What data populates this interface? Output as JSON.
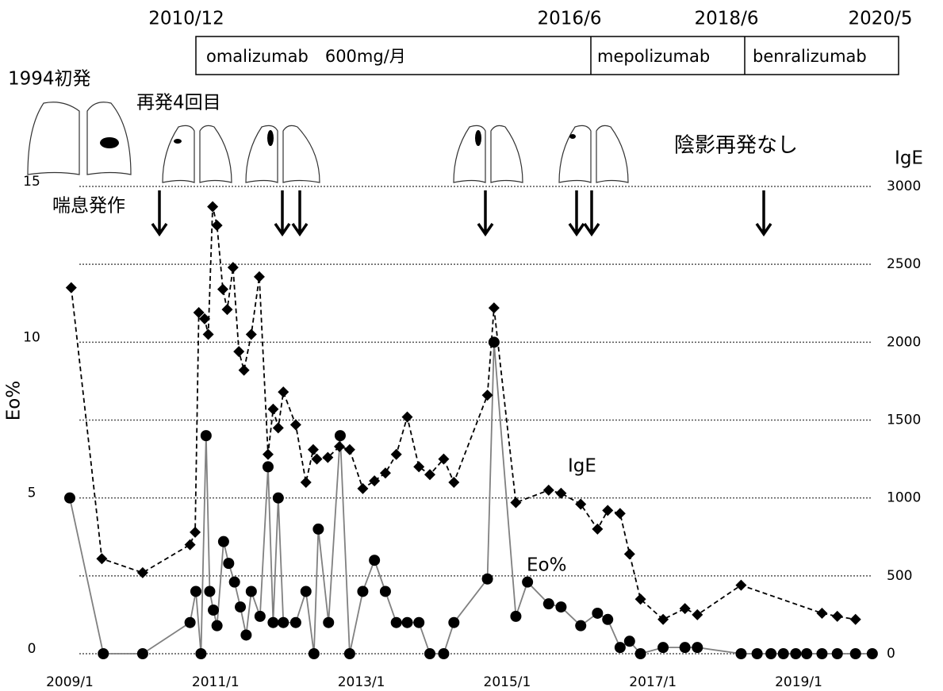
{
  "chart_data": {
    "type": "line",
    "timeline": {
      "dates": [
        "2010/12",
        "2016/6",
        "2018/6",
        "2020/5"
      ],
      "drugs": [
        "omalizumab　600mg/月",
        "mepolizumab",
        "benralizumab"
      ]
    },
    "annotations": [
      "1994初発",
      "再発4回目",
      "陰影再発なし",
      "喘息発作"
    ],
    "y_label": "Eo%",
    "y2_label": "IgE",
    "xlim": [
      2008.8,
      2020.3
    ],
    "xticks": [
      {
        "value": 2009,
        "label": "2009/1"
      },
      {
        "value": 2011,
        "label": "2011/1"
      },
      {
        "value": 2013,
        "label": "2013/1"
      },
      {
        "value": 2015,
        "label": "2015/1"
      },
      {
        "value": 2017,
        "label": "2017/1"
      },
      {
        "value": 2019,
        "label": "2019/1"
      }
    ],
    "ylim": [
      0,
      15
    ],
    "yticks": [
      0,
      5,
      10,
      15
    ],
    "y2lim": [
      0,
      3000
    ],
    "y2ticks": [
      0,
      500,
      1000,
      1500,
      2000,
      2500,
      3000
    ],
    "grid": true,
    "series": [
      {
        "name": "Eo%",
        "color": "#808080",
        "marker": "circle",
        "dash": false,
        "x": [
          2009.0,
          2009.46,
          2010.0,
          2010.65,
          2010.73,
          2010.8,
          2010.87,
          2010.92,
          2010.97,
          2011.02,
          2011.11,
          2011.18,
          2011.26,
          2011.34,
          2011.42,
          2011.49,
          2011.61,
          2011.72,
          2011.79,
          2011.86,
          2011.93,
          2012.1,
          2012.24,
          2012.35,
          2012.41,
          2012.55,
          2012.71,
          2012.84,
          2013.02,
          2013.18,
          2013.33,
          2013.48,
          2013.63,
          2013.79,
          2013.94,
          2014.13,
          2014.27,
          2014.73,
          2014.82,
          2015.12,
          2015.28,
          2015.57,
          2015.74,
          2016.01,
          2016.24,
          2016.38,
          2016.55,
          2016.68,
          2016.83,
          2017.14,
          2017.44,
          2017.61,
          2018.21,
          2018.43,
          2018.62,
          2018.79,
          2018.96,
          2019.11,
          2019.32,
          2019.53,
          2019.78,
          2020.01
        ],
        "values": [
          5,
          0,
          0,
          1,
          2,
          0,
          7,
          2,
          1.4,
          0.9,
          3.6,
          2.9,
          2.3,
          1.5,
          0.6,
          2,
          1.2,
          6,
          1,
          5,
          1,
          1,
          2,
          0,
          4,
          1,
          7,
          0,
          2,
          3,
          2,
          1,
          1,
          1,
          0,
          0,
          1,
          2.4,
          10,
          1.2,
          2.3,
          1.6,
          1.5,
          0.9,
          1.3,
          1.1,
          0.2,
          0.4,
          0,
          0.2,
          0.2,
          0.2,
          0,
          0,
          0,
          0,
          0,
          0,
          0,
          0,
          0,
          0
        ]
      },
      {
        "name": "IgE",
        "color": "#000000",
        "marker": "diamond",
        "dash": true,
        "axis": "y2",
        "x": [
          2009.02,
          2009.44,
          2010.0,
          2010.65,
          2010.72,
          2010.77,
          2010.85,
          2010.9,
          2010.96,
          2011.02,
          2011.1,
          2011.16,
          2011.24,
          2011.32,
          2011.39,
          2011.49,
          2011.6,
          2011.72,
          2011.79,
          2011.86,
          2011.93,
          2012.1,
          2012.24,
          2012.34,
          2012.39,
          2012.54,
          2012.7,
          2012.84,
          2013.02,
          2013.18,
          2013.33,
          2013.48,
          2013.63,
          2013.79,
          2013.94,
          2014.13,
          2014.27,
          2014.73,
          2014.82,
          2015.12,
          2015.57,
          2015.74,
          2016.01,
          2016.24,
          2016.38,
          2016.55,
          2016.68,
          2016.83,
          2017.14,
          2017.44,
          2017.61,
          2018.21,
          2019.32,
          2019.53,
          2019.78
        ],
        "values": [
          2350,
          610,
          520,
          700,
          780,
          2190,
          2150,
          2050,
          2870,
          2750,
          2340,
          2210,
          2480,
          1940,
          1820,
          2050,
          2420,
          1280,
          1570,
          1450,
          1680,
          1470,
          1100,
          1310,
          1250,
          1260,
          1330,
          1310,
          1060,
          1110,
          1160,
          1280,
          1520,
          1200,
          1150,
          1250,
          1100,
          1660,
          2220,
          970,
          1050,
          1030,
          960,
          800,
          920,
          900,
          640,
          350,
          220,
          290,
          250,
          440,
          260,
          240,
          220
        ]
      }
    ]
  }
}
